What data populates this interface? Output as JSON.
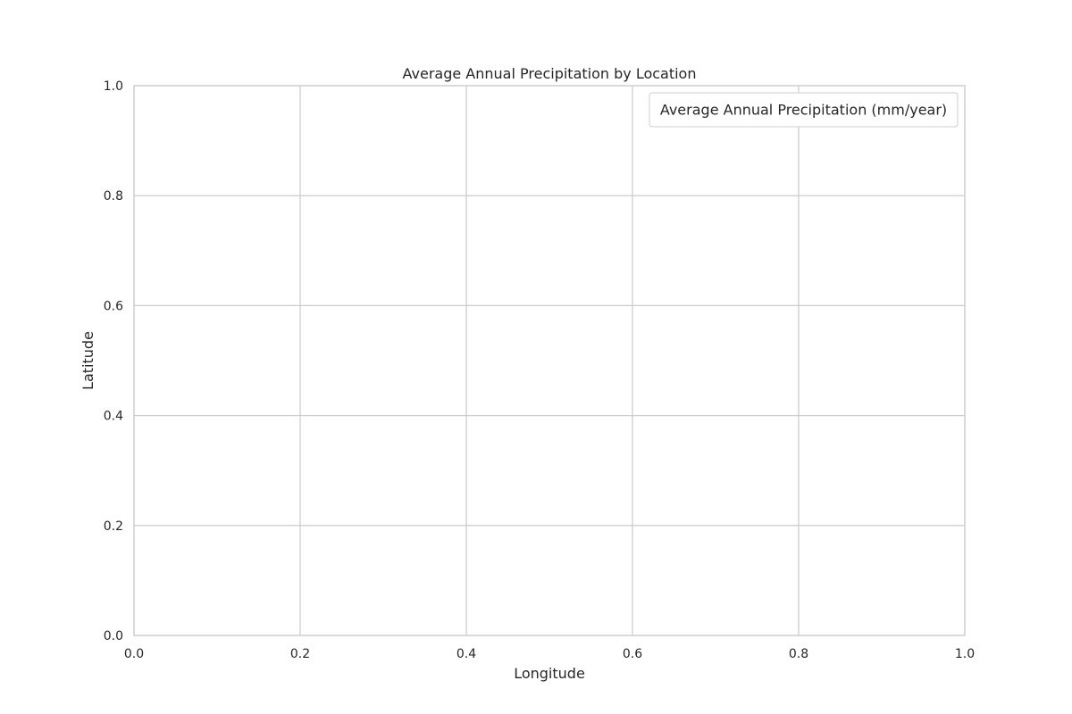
{
  "chart_data": {
    "type": "scatter",
    "title": "Average Annual Precipitation by Location",
    "xlabel": "Longitude",
    "ylabel": "Latitude",
    "xlim": [
      0.0,
      1.0
    ],
    "ylim": [
      0.0,
      1.0
    ],
    "x_ticks": [
      "0.0",
      "0.2",
      "0.4",
      "0.6",
      "0.8",
      "1.0"
    ],
    "y_ticks": [
      "0.0",
      "0.2",
      "0.4",
      "0.6",
      "0.8",
      "1.0"
    ],
    "grid": true,
    "legend": {
      "title": "Average Annual Precipitation (mm/year)",
      "placement": "top-right",
      "entries": []
    },
    "series": []
  },
  "colors": {
    "grid": "#cccccc",
    "axes_edge": "#cccccc",
    "text": "#262626",
    "background": "#ffffff"
  }
}
